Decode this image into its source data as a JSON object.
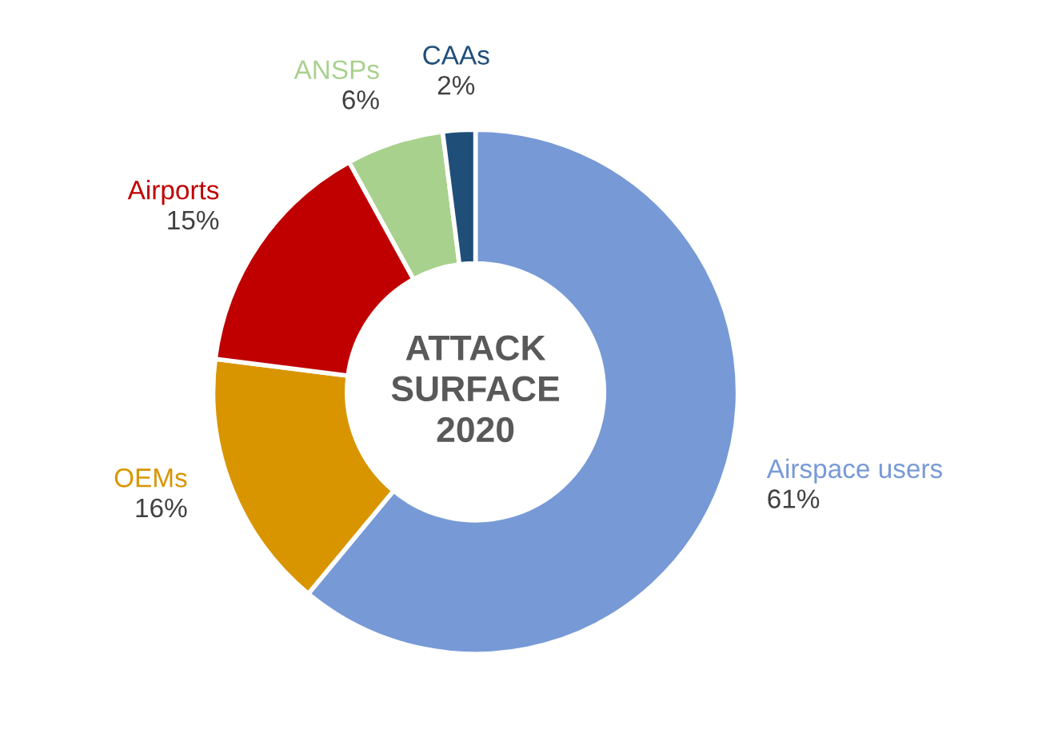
{
  "chart_data": {
    "type": "donut",
    "title": "ATTACK\nSURFACE\n2020",
    "categories": [
      "Airspace users",
      "OEMs",
      "Airports",
      "ANSPs",
      "CAAs"
    ],
    "values": [
      61,
      16,
      15,
      6,
      2
    ],
    "colors": [
      "#7799d6",
      "#d99500",
      "#c00000",
      "#a9d18e",
      "#1f4e79"
    ],
    "value_labels": [
      "61%",
      "16%",
      "15%",
      "6%",
      "2%"
    ],
    "legend": false
  }
}
